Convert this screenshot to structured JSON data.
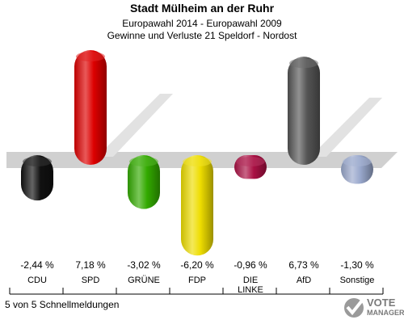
{
  "header": {
    "title": "Stadt Mülheim an der Ruhr",
    "subtitle1": "Europawahl 2014 - Europawahl 2009",
    "subtitle2": "Gewinne und Verluste 21 Speldorf - Nordost"
  },
  "footer": {
    "footnote": "5 von 5 Schnellmeldungen",
    "brand_line1": "VOTE",
    "brand_line2": "MANAGER"
  },
  "chart_data": {
    "type": "bar",
    "title": "Stadt Mülheim an der Ruhr",
    "categories": [
      "CDU",
      "SPD",
      "GRÜNE",
      "FDP",
      "DIE LINKE",
      "AfD",
      "Sonstige"
    ],
    "category_lines": [
      [
        "CDU"
      ],
      [
        "SPD"
      ],
      [
        "GRÜNE"
      ],
      [
        "FDP"
      ],
      [
        "DIE",
        "LINKE"
      ],
      [
        "AfD"
      ],
      [
        "Sonstige"
      ]
    ],
    "values": [
      -2.44,
      7.18,
      -3.02,
      -6.2,
      -0.96,
      6.73,
      -1.3
    ],
    "value_labels": [
      "-2,44 %",
      "7,18 %",
      "-3,02 %",
      "-6,20 %",
      "-0,96 %",
      "6,73 %",
      "-1,30 %"
    ],
    "colors": [
      "#111111",
      "#dd0000",
      "#33aa00",
      "#eedd00",
      "#aa1144",
      "#555555",
      "#99a8cc"
    ],
    "ylim": [
      -6.2,
      7.18
    ],
    "grid": false,
    "legend": "none"
  }
}
